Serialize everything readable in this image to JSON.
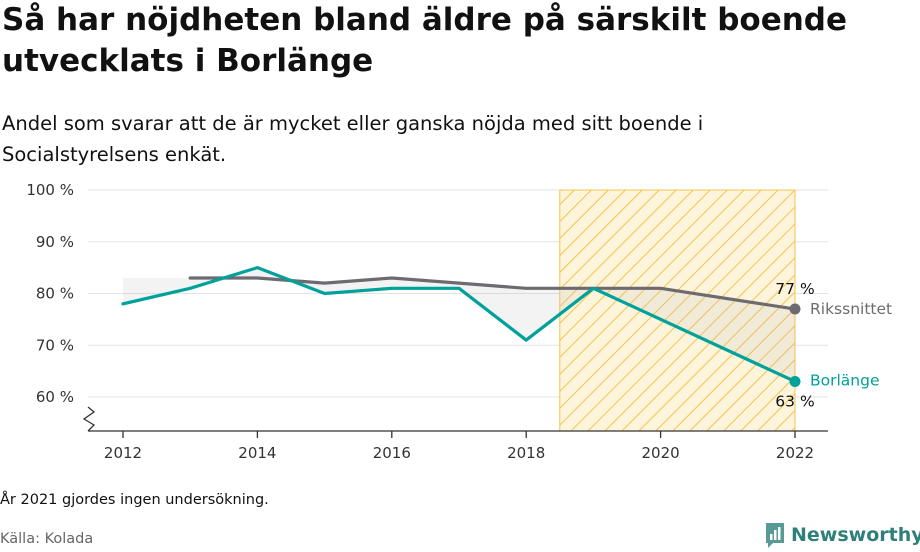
{
  "title": "Så har nöjdheten bland äldre på särskilt boende utvecklats i Borlänge",
  "subtitle": "Andel som svarar att de är mycket eller ganska nöjda med sitt boende i Socialstyrelsens enkät.",
  "note": "År 2021 gjordes ingen undersökning.",
  "source": "Källa: Kolada",
  "brand": {
    "name": "Newsworthy",
    "icon": "newsworthy-logo-icon"
  },
  "colors": {
    "borlange": "#00a19a",
    "riks": "#6d6b70",
    "highlight": "#f6c34c",
    "grid": "#e3e3e3"
  },
  "chart_data": {
    "type": "line",
    "x_ticks": [
      "2012",
      "2014",
      "2016",
      "2018",
      "2020",
      "2022"
    ],
    "y_ticks": [
      "60 %",
      "70 %",
      "80 %",
      "90 %",
      "100 %"
    ],
    "ylim": [
      60,
      100
    ],
    "xlim": [
      2012,
      2022
    ],
    "grid": true,
    "highlight_range": [
      2018.5,
      2022
    ],
    "series": [
      {
        "name": "Borlänge",
        "x": [
          2012,
          2013,
          2014,
          2015,
          2016,
          2017,
          2018,
          2019,
          2022
        ],
        "y": [
          78,
          81,
          85,
          80,
          81,
          81,
          71,
          81,
          63
        ],
        "end_label": "63 %"
      },
      {
        "name": "Rikssnittet",
        "x": [
          2013,
          2014,
          2015,
          2016,
          2017,
          2018,
          2019,
          2020,
          2022
        ],
        "y": [
          83,
          83,
          82,
          83,
          82,
          81,
          81,
          81,
          77
        ],
        "end_label": "77 %"
      }
    ]
  }
}
